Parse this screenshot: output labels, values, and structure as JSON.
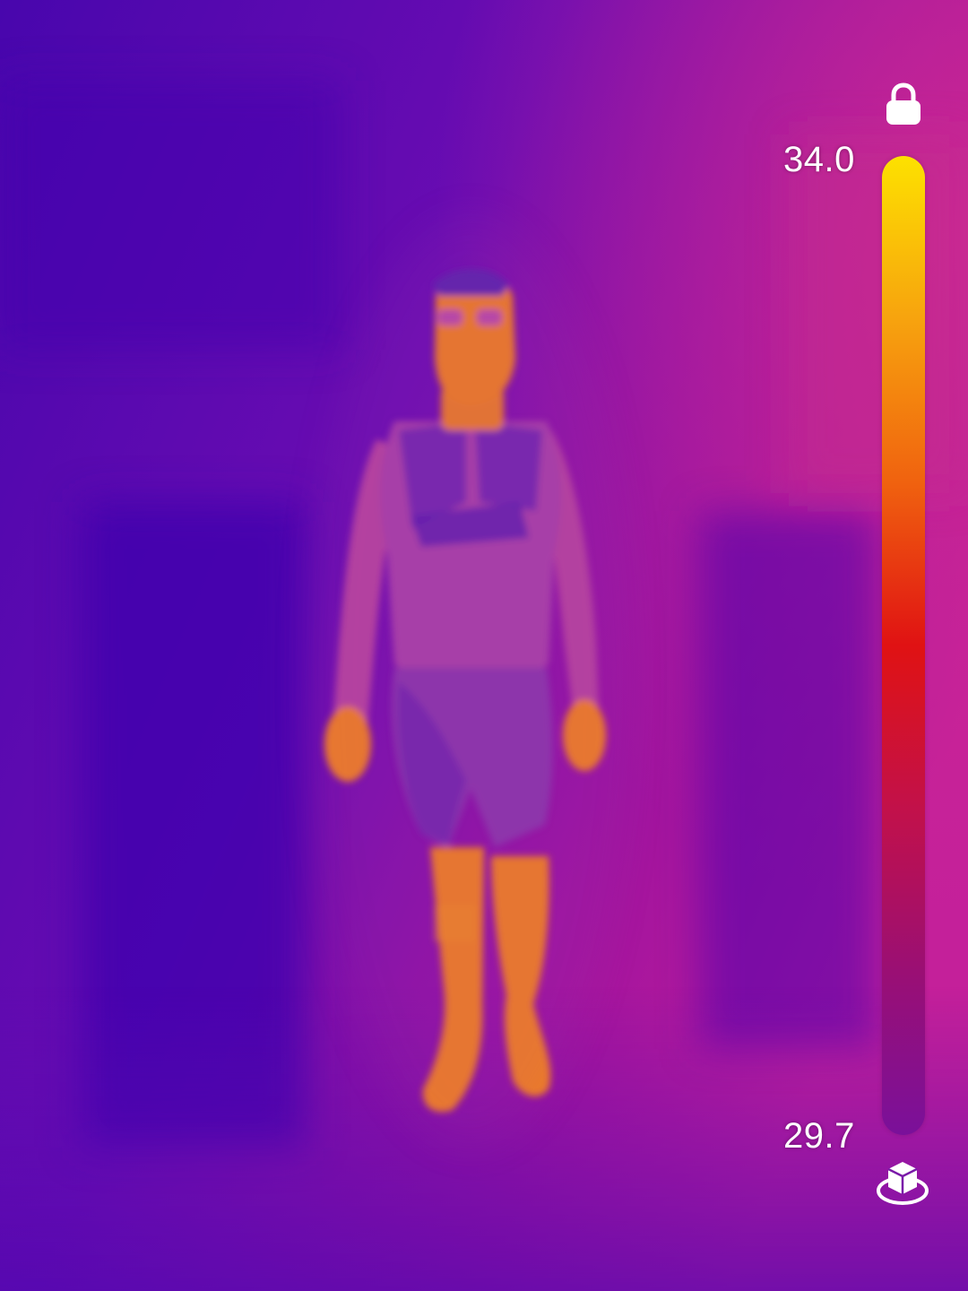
{
  "thermal_view": {
    "scale_max": "34.0",
    "scale_min": "29.7",
    "palette": [
      "#fde100",
      "#f7a30e",
      "#f0620f",
      "#e01213",
      "#c2114a",
      "#9a0f74",
      "#7a109a"
    ]
  },
  "controls": {
    "lock": {
      "icon": "lock-icon"
    },
    "mode": {
      "icon": "3d-cube-icon"
    }
  },
  "colors": {
    "background_cold": "#4a06b0",
    "background_warm": "#b0169a",
    "body_hot": "#f07e1c"
  }
}
